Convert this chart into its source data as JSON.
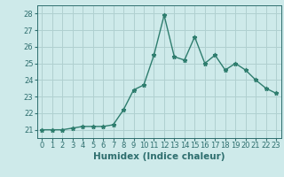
{
  "x": [
    0,
    1,
    2,
    3,
    4,
    5,
    6,
    7,
    8,
    9,
    10,
    11,
    12,
    13,
    14,
    15,
    16,
    17,
    18,
    19,
    20,
    21,
    22,
    23
  ],
  "y": [
    21.0,
    21.0,
    21.0,
    21.1,
    21.2,
    21.2,
    21.2,
    21.3,
    22.2,
    23.4,
    23.7,
    25.5,
    27.9,
    25.4,
    25.2,
    26.6,
    25.0,
    25.5,
    24.6,
    25.0,
    24.6,
    24.0,
    23.5,
    23.2
  ],
  "line_color": "#2e7d6e",
  "bg_color": "#ceeaea",
  "grid_color": "#b0d0d0",
  "tick_color": "#2e6e6e",
  "xlabel": "Humidex (Indice chaleur)",
  "ylim": [
    20.5,
    28.5
  ],
  "yticks": [
    21,
    22,
    23,
    24,
    25,
    26,
    27,
    28
  ],
  "xlim": [
    -0.5,
    23.5
  ],
  "label_fontsize": 7.5,
  "tick_fontsize": 6.0,
  "marker_size": 3.5,
  "linewidth": 1.0
}
